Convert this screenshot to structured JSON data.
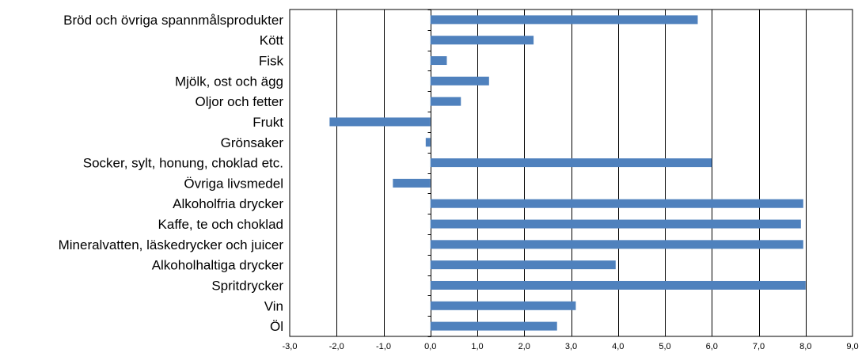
{
  "chart_data": {
    "type": "bar",
    "orientation": "horizontal",
    "categories": [
      "Bröd och övriga spannmålsprodukter",
      "Kött",
      "Fisk",
      "Mjölk, ost och ägg",
      "Oljor och fetter",
      "Frukt",
      "Grönsaker",
      "Socker, sylt, honung, choklad etc.",
      "Övriga livsmedel",
      "Alkoholfria drycker",
      "Kaffe, te och choklad",
      "Mineralvatten, läskedrycker och juicer",
      "Alkoholhaltiga drycker",
      "Spritdrycker",
      "Vin",
      "Öl"
    ],
    "values": [
      5.7,
      2.2,
      0.35,
      1.25,
      0.65,
      -2.15,
      -0.1,
      6.0,
      -0.8,
      7.95,
      7.9,
      7.95,
      3.95,
      8.0,
      3.1,
      2.7
    ],
    "xlim": [
      -3.0,
      9.0
    ],
    "xticks": [
      -3.0,
      -2.0,
      -1.0,
      0.0,
      1.0,
      2.0,
      3.0,
      4.0,
      5.0,
      6.0,
      7.0,
      8.0,
      9.0
    ],
    "xtick_labels": [
      "-3,0",
      "-2,0",
      "-1,0",
      "0,0",
      "1,0",
      "2,0",
      "3,0",
      "4,0",
      "5,0",
      "6,0",
      "7,0",
      "8,0",
      "9,0"
    ],
    "grid": "vertical",
    "bar_color": "#4f81bd",
    "gridline_color": "#000000",
    "title": "",
    "xlabel": "",
    "ylabel": ""
  }
}
